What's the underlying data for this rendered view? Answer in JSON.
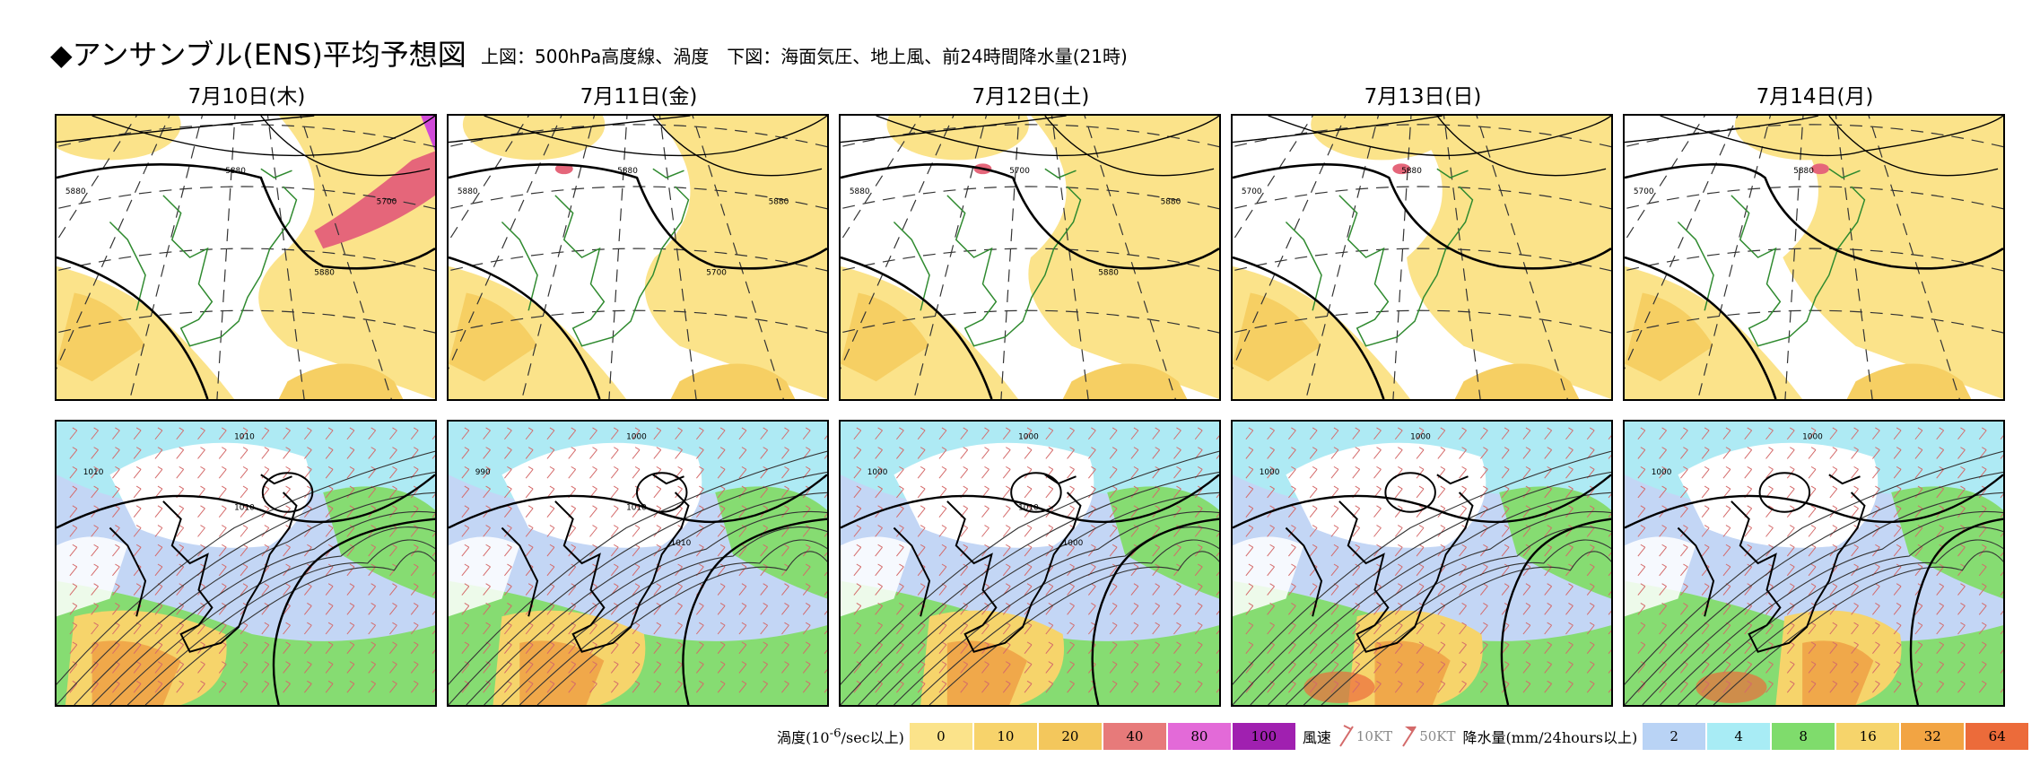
{
  "header": {
    "title": "◆アンサンブル(ENS)平均予想図",
    "subtitle": "上図：500hPa高度線、渦度　下図：海面気圧、地上風、前24時間降水量(21時)"
  },
  "dates": [
    "7月10日(木)",
    "7月11日(金)",
    "7月12日(土)",
    "7月13日(日)",
    "7月14日(月)"
  ],
  "upper_maps": [
    {
      "labels": [
        "5880",
        "5880",
        "5880",
        "5700"
      ]
    },
    {
      "labels": [
        "5880",
        "5880",
        "5700",
        "5880"
      ]
    },
    {
      "labels": [
        "5880",
        "5700",
        "5880",
        "5880"
      ]
    },
    {
      "labels": [
        "5700",
        "5880"
      ]
    },
    {
      "labels": [
        "5700",
        "5880"
      ]
    }
  ],
  "lower_maps": [
    {
      "labels": [
        "1010",
        "1010",
        "1010"
      ]
    },
    {
      "labels": [
        "1000",
        "990",
        "1010",
        "1010"
      ]
    },
    {
      "labels": [
        "1000",
        "1000",
        "1010",
        "1000"
      ]
    },
    {
      "labels": [
        "1000",
        "1000"
      ]
    },
    {
      "labels": [
        "1000",
        "1000"
      ]
    }
  ],
  "legend": {
    "vorticity": {
      "label_pre": "渦度(10",
      "label_exp": "-6",
      "label_post": "/sec以上)",
      "items": [
        {
          "value": "0",
          "color": "#fbe38a"
        },
        {
          "value": "10",
          "color": "#f7d36b"
        },
        {
          "value": "20",
          "color": "#f3c75c"
        },
        {
          "value": "40",
          "color": "#e77a7a"
        },
        {
          "value": "80",
          "color": "#e36ad8"
        },
        {
          "value": "100",
          "color": "#a020b0"
        }
      ]
    },
    "wind": {
      "label": "風速",
      "items": [
        {
          "value": "10KT",
          "icon": "wind-barb-10kt"
        },
        {
          "value": "50KT",
          "icon": "wind-barb-50kt"
        }
      ]
    },
    "precip": {
      "label": "降水量(mm/24hours以上)",
      "items": [
        {
          "value": "2",
          "color": "#b9d3f5"
        },
        {
          "value": "4",
          "color": "#a8ecf5"
        },
        {
          "value": "8",
          "color": "#7fdc6c"
        },
        {
          "value": "16",
          "color": "#f6d46b"
        },
        {
          "value": "32",
          "color": "#f2a443"
        },
        {
          "value": "64",
          "color": "#ec6b3a"
        }
      ]
    }
  },
  "colors": {
    "vort_light": "#fbe38a",
    "vort_mid": "#f6cf63",
    "vort_red": "#e5667a",
    "vort_mag": "#d04ad8",
    "coast": "#2f8a2f",
    "rain_blue": "#c3d6f5",
    "rain_cyan": "#aeeaf4",
    "rain_green": "#86dc72",
    "rain_yellow": "#f6d46b",
    "rain_orange": "#f0a84a",
    "rain_red": "#ec6b3a",
    "barb": "#d46a6a"
  }
}
